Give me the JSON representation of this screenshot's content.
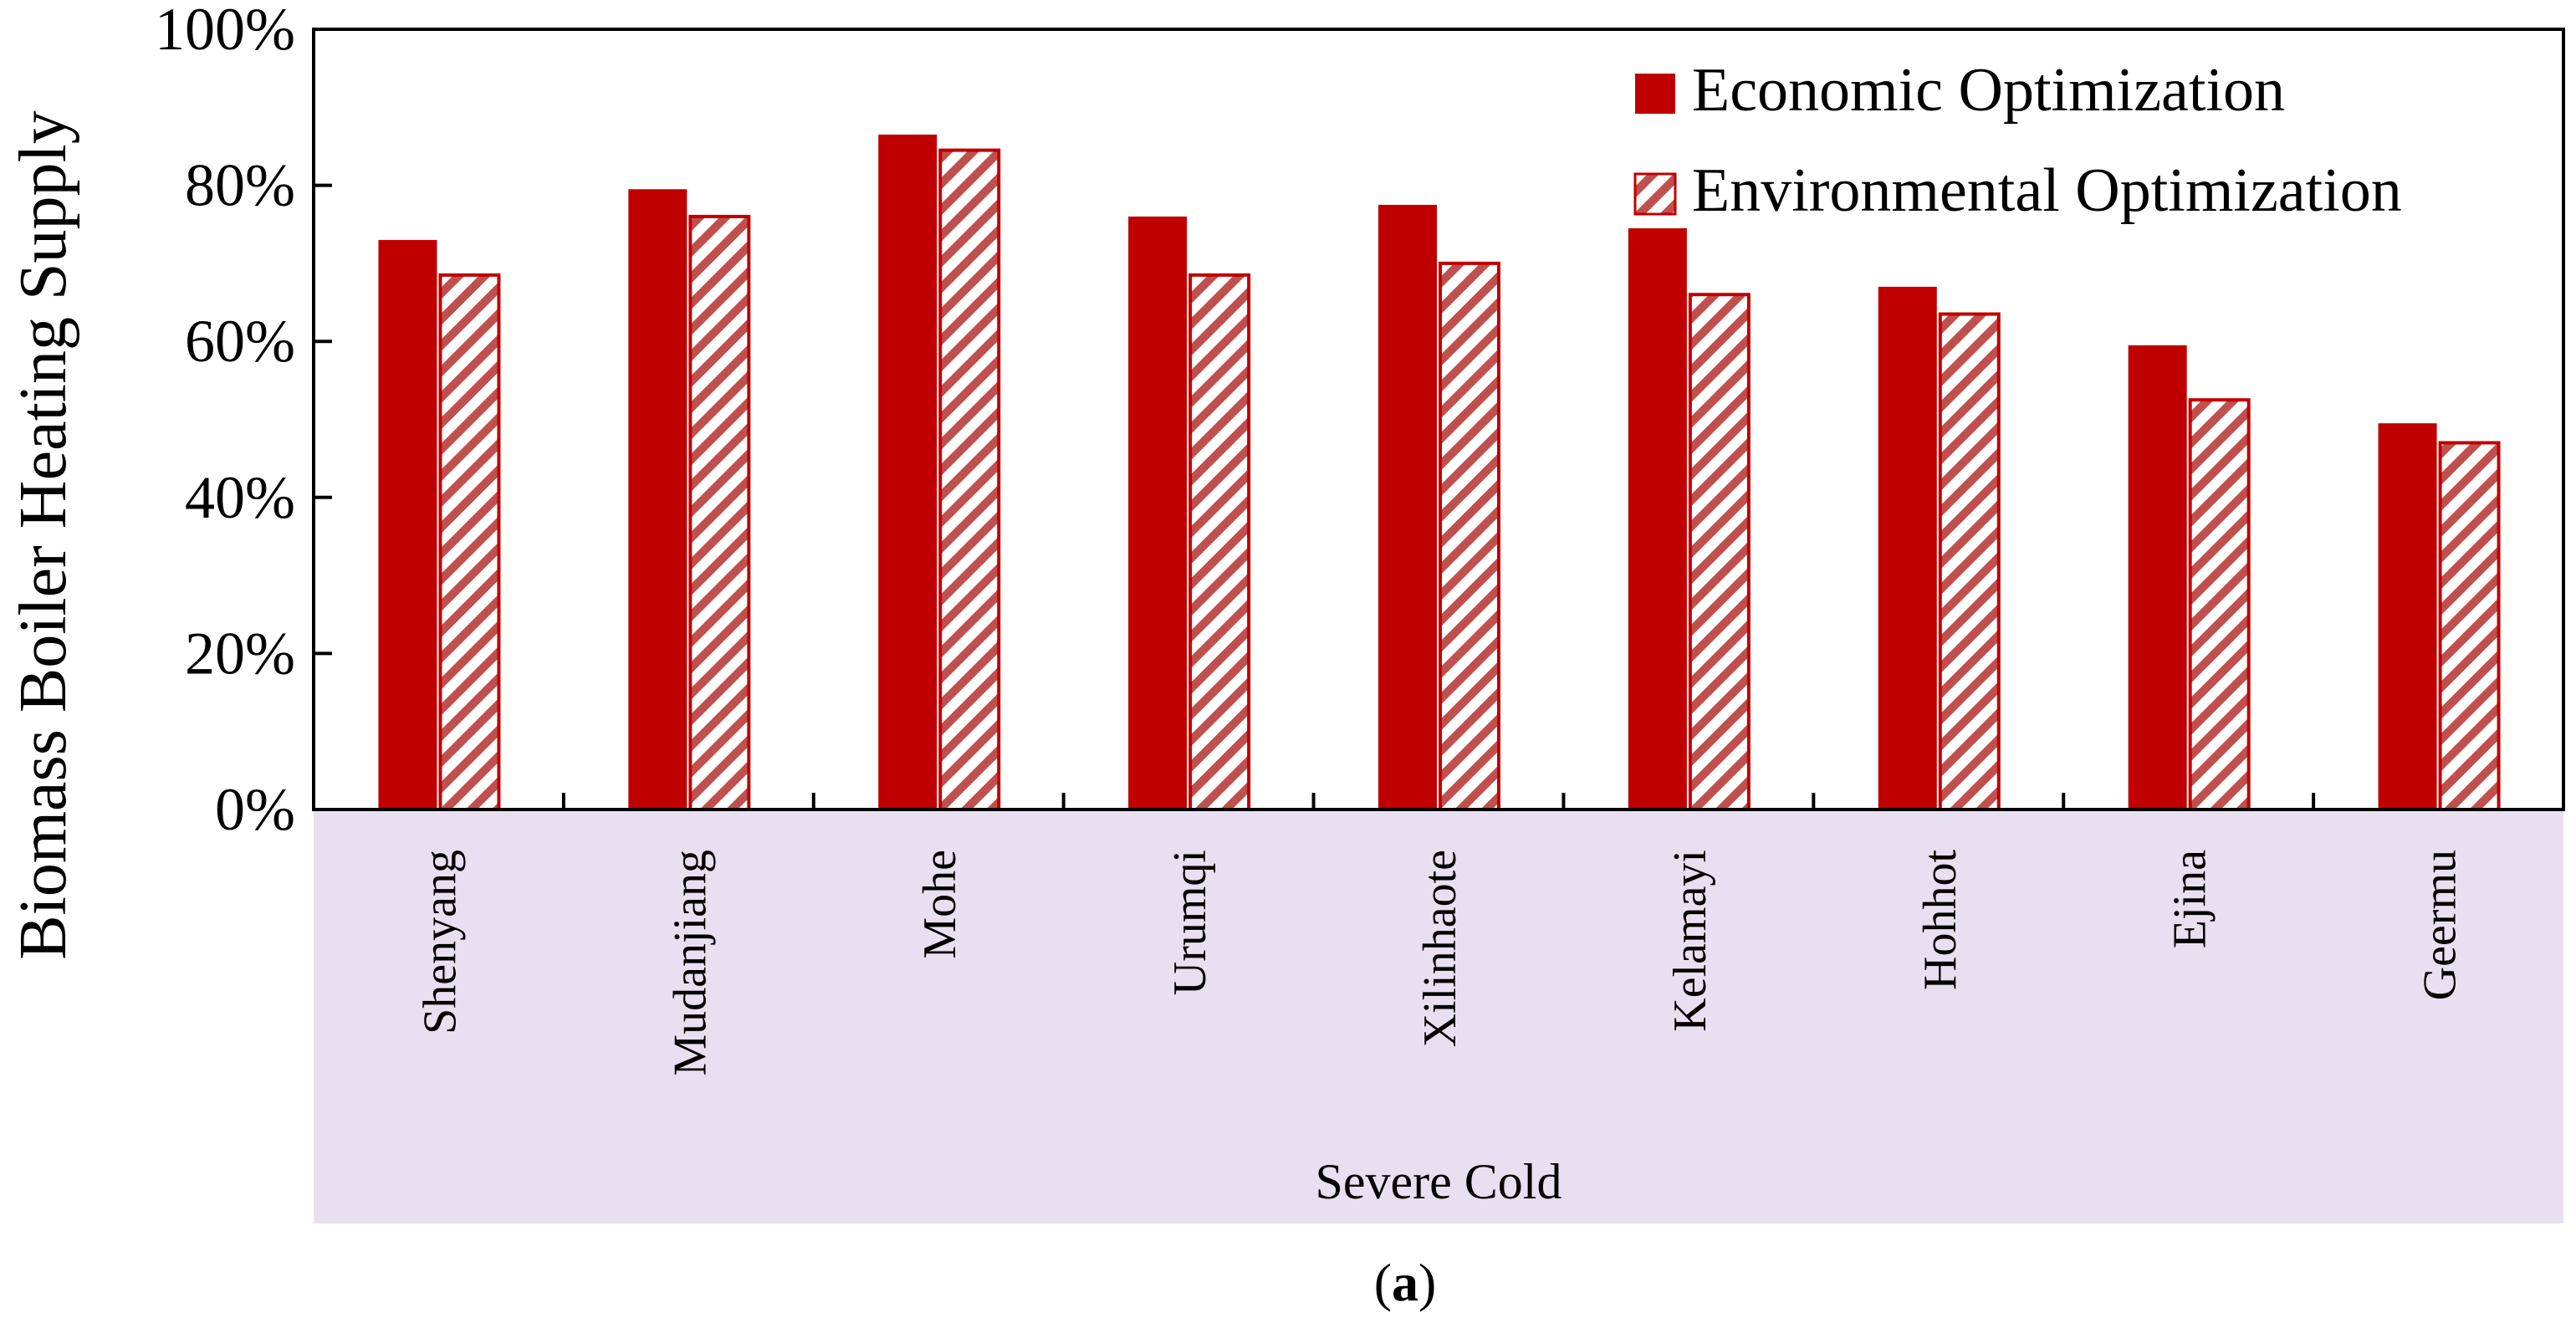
{
  "chart_data": {
    "type": "bar",
    "title": "",
    "ylabel": "Biomass Boiler Heating Supply",
    "xlabel": "Severe Cold",
    "ylim": [
      0,
      100
    ],
    "yticks": [
      "0%",
      "20%",
      "40%",
      "60%",
      "80%",
      "100%"
    ],
    "ytick_values": [
      0,
      20,
      40,
      60,
      80,
      100
    ],
    "categories": [
      "Shenyang",
      "Mudanjiang",
      "Mohe",
      "Urumqi",
      "Xilinhaote",
      "Kelamayi",
      "Hohhot",
      "Ejina",
      "Geermu"
    ],
    "series": [
      {
        "name": "Economic Optimization",
        "values": [
          73,
          79.5,
          86.5,
          76,
          77.5,
          74.5,
          67,
          59.5,
          49.5
        ],
        "color": "#c00000",
        "style": "solid"
      },
      {
        "name": "Environmental Optimization",
        "values": [
          68.5,
          76,
          84.5,
          68.5,
          70,
          66,
          63.5,
          52.5,
          47
        ],
        "color": "#c00000",
        "style": "hatched"
      }
    ],
    "legend_position": "top-right",
    "group_band_color": "#e8dff0"
  },
  "caption": {
    "open": "(",
    "letter": "a",
    "close": ")"
  }
}
